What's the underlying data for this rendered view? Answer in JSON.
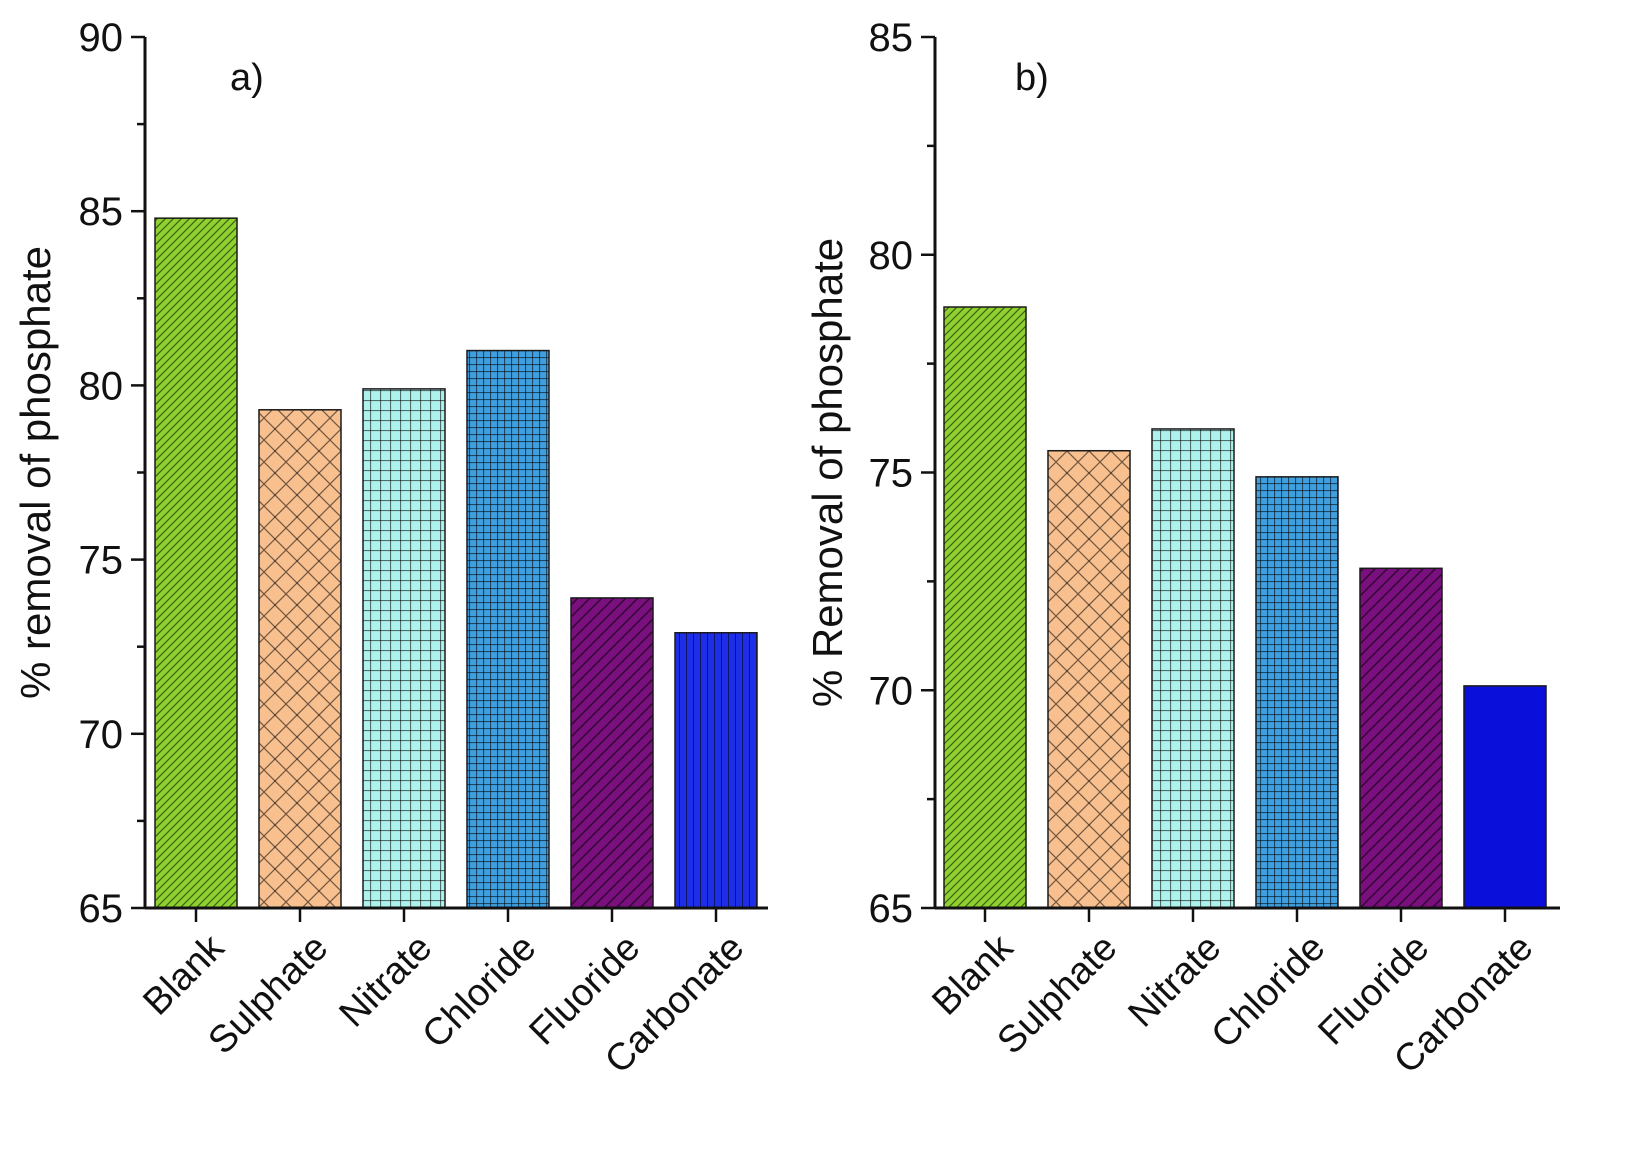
{
  "chart_data": [
    {
      "type": "bar",
      "panel_label": "a)",
      "title": "",
      "xlabel": "",
      "ylabel": "% removal of phosphate",
      "ylim": [
        65,
        90
      ],
      "yticks": [
        "65",
        "70",
        "75",
        "80",
        "85",
        "90"
      ],
      "categories": [
        "Blank",
        "Sulphate",
        "Nitrate",
        "Chloride",
        "Fluoride",
        "Carbonate"
      ],
      "values": [
        84.8,
        79.3,
        79.9,
        81.0,
        73.9,
        72.9
      ],
      "colors": [
        "#8fd12f",
        "#f9c08f",
        "#aef2ee",
        "#3f9fdf",
        "#7a0f7e",
        "#1d2ee8"
      ],
      "patterns": [
        "diag-fine",
        "crosshatch",
        "grid",
        "grid-fine",
        "diag-wide",
        "vertical"
      ],
      "grid": false
    },
    {
      "type": "bar",
      "panel_label": "b)",
      "title": "",
      "xlabel": "",
      "ylabel": "% Removal of phosphate",
      "ylim": [
        65,
        85
      ],
      "yticks": [
        "65",
        "70",
        "75",
        "80",
        "85"
      ],
      "categories": [
        "Blank",
        "Sulphate",
        "Nitrate",
        "Chloride",
        "Fluoride",
        "Carbonate"
      ],
      "values": [
        78.8,
        75.5,
        76.0,
        74.9,
        72.8,
        70.1
      ],
      "colors": [
        "#8fd12f",
        "#f9c08f",
        "#aef2ee",
        "#3f9fdf",
        "#7a0f7e",
        "#0a10d9"
      ],
      "patterns": [
        "diag-fine",
        "crosshatch",
        "grid",
        "grid-fine",
        "diag-wide",
        "none"
      ],
      "grid": false
    }
  ]
}
